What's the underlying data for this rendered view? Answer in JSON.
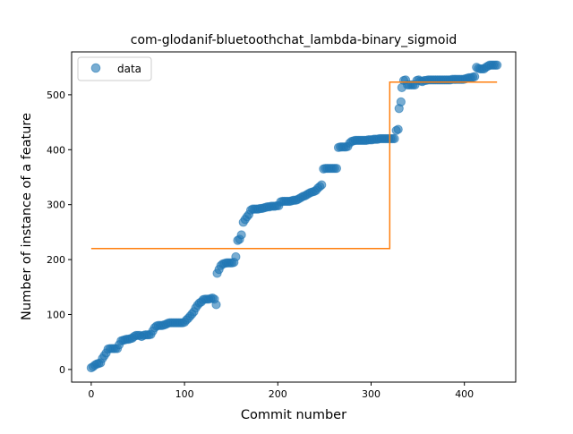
{
  "chart_data": {
    "type": "scatter",
    "title": "com-glodanif-bluetoothchat_lambda-binary_sigmoid",
    "xlabel": "Commit number",
    "ylabel": "Number of instance of a feature",
    "xlim": [
      -21,
      455
    ],
    "ylim": [
      -23,
      578
    ],
    "xticks": [
      0,
      100,
      200,
      300,
      400
    ],
    "yticks": [
      0,
      100,
      200,
      300,
      400,
      500
    ],
    "grid": false,
    "legend": {
      "placement": "upper-left",
      "entries": [
        "data"
      ]
    },
    "series": [
      {
        "name": "data",
        "kind": "scatter",
        "color": "#1f77b4",
        "opacity": 0.6,
        "points": [
          [
            0,
            3
          ],
          [
            2,
            5
          ],
          [
            4,
            8
          ],
          [
            6,
            10
          ],
          [
            8,
            11
          ],
          [
            10,
            12
          ],
          [
            12,
            20
          ],
          [
            14,
            25
          ],
          [
            16,
            30
          ],
          [
            18,
            37
          ],
          [
            20,
            38
          ],
          [
            22,
            38
          ],
          [
            24,
            38
          ],
          [
            26,
            38
          ],
          [
            28,
            38
          ],
          [
            30,
            45
          ],
          [
            32,
            52
          ],
          [
            34,
            53
          ],
          [
            36,
            54
          ],
          [
            38,
            55
          ],
          [
            40,
            55
          ],
          [
            42,
            56
          ],
          [
            44,
            57
          ],
          [
            46,
            60
          ],
          [
            48,
            62
          ],
          [
            50,
            62
          ],
          [
            52,
            62
          ],
          [
            54,
            60
          ],
          [
            56,
            62
          ],
          [
            58,
            63
          ],
          [
            60,
            63
          ],
          [
            62,
            63
          ],
          [
            64,
            64
          ],
          [
            66,
            70
          ],
          [
            68,
            76
          ],
          [
            70,
            79
          ],
          [
            72,
            80
          ],
          [
            74,
            80
          ],
          [
            76,
            80
          ],
          [
            78,
            81
          ],
          [
            80,
            82
          ],
          [
            82,
            84
          ],
          [
            84,
            85
          ],
          [
            86,
            85
          ],
          [
            88,
            85
          ],
          [
            90,
            85
          ],
          [
            92,
            85
          ],
          [
            94,
            85
          ],
          [
            96,
            85
          ],
          [
            98,
            85
          ],
          [
            100,
            86
          ],
          [
            102,
            90
          ],
          [
            104,
            93
          ],
          [
            106,
            97
          ],
          [
            108,
            101
          ],
          [
            110,
            105
          ],
          [
            112,
            112
          ],
          [
            114,
            117
          ],
          [
            116,
            121
          ],
          [
            118,
            123
          ],
          [
            120,
            127
          ],
          [
            122,
            128
          ],
          [
            124,
            128
          ],
          [
            126,
            128
          ],
          [
            128,
            129
          ],
          [
            130,
            130
          ],
          [
            132,
            128
          ],
          [
            134,
            118
          ],
          [
            135,
            175
          ],
          [
            137,
            182
          ],
          [
            139,
            189
          ],
          [
            141,
            192
          ],
          [
            143,
            193
          ],
          [
            145,
            194
          ],
          [
            147,
            194
          ],
          [
            149,
            194
          ],
          [
            151,
            194
          ],
          [
            153,
            195
          ],
          [
            155,
            205
          ],
          [
            157,
            235
          ],
          [
            159,
            237
          ],
          [
            161,
            245
          ],
          [
            163,
            268
          ],
          [
            165,
            273
          ],
          [
            167,
            278
          ],
          [
            169,
            282
          ],
          [
            171,
            290
          ],
          [
            173,
            292
          ],
          [
            175,
            292
          ],
          [
            177,
            292
          ],
          [
            179,
            292
          ],
          [
            181,
            293
          ],
          [
            183,
            293
          ],
          [
            185,
            294
          ],
          [
            187,
            295
          ],
          [
            189,
            296
          ],
          [
            191,
            296
          ],
          [
            193,
            297
          ],
          [
            195,
            297
          ],
          [
            197,
            297
          ],
          [
            199,
            298
          ],
          [
            201,
            298
          ],
          [
            203,
            305
          ],
          [
            205,
            306
          ],
          [
            207,
            306
          ],
          [
            209,
            306
          ],
          [
            211,
            306
          ],
          [
            213,
            306
          ],
          [
            215,
            307
          ],
          [
            217,
            308
          ],
          [
            219,
            308
          ],
          [
            221,
            309
          ],
          [
            223,
            311
          ],
          [
            225,
            313
          ],
          [
            227,
            315
          ],
          [
            229,
            316
          ],
          [
            231,
            318
          ],
          [
            233,
            320
          ],
          [
            235,
            322
          ],
          [
            237,
            323
          ],
          [
            239,
            324
          ],
          [
            241,
            326
          ],
          [
            243,
            330
          ],
          [
            245,
            333
          ],
          [
            247,
            336
          ],
          [
            249,
            365
          ],
          [
            251,
            366
          ],
          [
            253,
            366
          ],
          [
            255,
            366
          ],
          [
            257,
            366
          ],
          [
            259,
            366
          ],
          [
            261,
            366
          ],
          [
            263,
            366
          ],
          [
            265,
            404
          ],
          [
            267,
            405
          ],
          [
            269,
            405
          ],
          [
            271,
            405
          ],
          [
            273,
            405
          ],
          [
            275,
            406
          ],
          [
            277,
            412
          ],
          [
            279,
            415
          ],
          [
            281,
            416
          ],
          [
            283,
            417
          ],
          [
            285,
            417
          ],
          [
            287,
            417
          ],
          [
            289,
            417
          ],
          [
            291,
            417
          ],
          [
            293,
            417
          ],
          [
            295,
            417
          ],
          [
            297,
            418
          ],
          [
            299,
            418
          ],
          [
            301,
            418
          ],
          [
            303,
            419
          ],
          [
            305,
            419
          ],
          [
            307,
            419
          ],
          [
            309,
            420
          ],
          [
            311,
            420
          ],
          [
            313,
            420
          ],
          [
            315,
            420
          ],
          [
            317,
            420
          ],
          [
            319,
            420
          ],
          [
            321,
            420
          ],
          [
            323,
            420
          ],
          [
            325,
            420
          ],
          [
            327,
            435
          ],
          [
            329,
            437
          ],
          [
            330,
            475
          ],
          [
            332,
            487
          ],
          [
            333,
            513
          ],
          [
            335,
            526
          ],
          [
            337,
            527
          ],
          [
            339,
            518
          ],
          [
            341,
            518
          ],
          [
            343,
            518
          ],
          [
            345,
            518
          ],
          [
            347,
            518
          ],
          [
            349,
            526
          ],
          [
            351,
            527
          ],
          [
            353,
            525
          ],
          [
            355,
            524
          ],
          [
            357,
            526
          ],
          [
            359,
            526
          ],
          [
            361,
            527
          ],
          [
            363,
            527
          ],
          [
            365,
            527
          ],
          [
            367,
            527
          ],
          [
            369,
            527
          ],
          [
            371,
            527
          ],
          [
            373,
            527
          ],
          [
            375,
            527
          ],
          [
            377,
            527
          ],
          [
            379,
            527
          ],
          [
            381,
            527
          ],
          [
            383,
            527
          ],
          [
            385,
            527
          ],
          [
            387,
            528
          ],
          [
            389,
            528
          ],
          [
            391,
            528
          ],
          [
            393,
            528
          ],
          [
            395,
            528
          ],
          [
            397,
            528
          ],
          [
            399,
            528
          ],
          [
            401,
            529
          ],
          [
            403,
            530
          ],
          [
            405,
            531
          ],
          [
            407,
            531
          ],
          [
            409,
            532
          ],
          [
            411,
            533
          ],
          [
            413,
            550
          ],
          [
            415,
            548
          ],
          [
            417,
            547
          ],
          [
            419,
            547
          ],
          [
            421,
            547
          ],
          [
            423,
            550
          ],
          [
            425,
            552
          ],
          [
            427,
            554
          ],
          [
            429,
            554
          ],
          [
            431,
            554
          ],
          [
            433,
            554
          ],
          [
            435,
            554
          ]
        ]
      },
      {
        "kind": "line",
        "color": "#ff7f0e",
        "points": [
          [
            0,
            220
          ],
          [
            320,
            220
          ],
          [
            320,
            523
          ],
          [
            435,
            523
          ]
        ]
      }
    ]
  }
}
